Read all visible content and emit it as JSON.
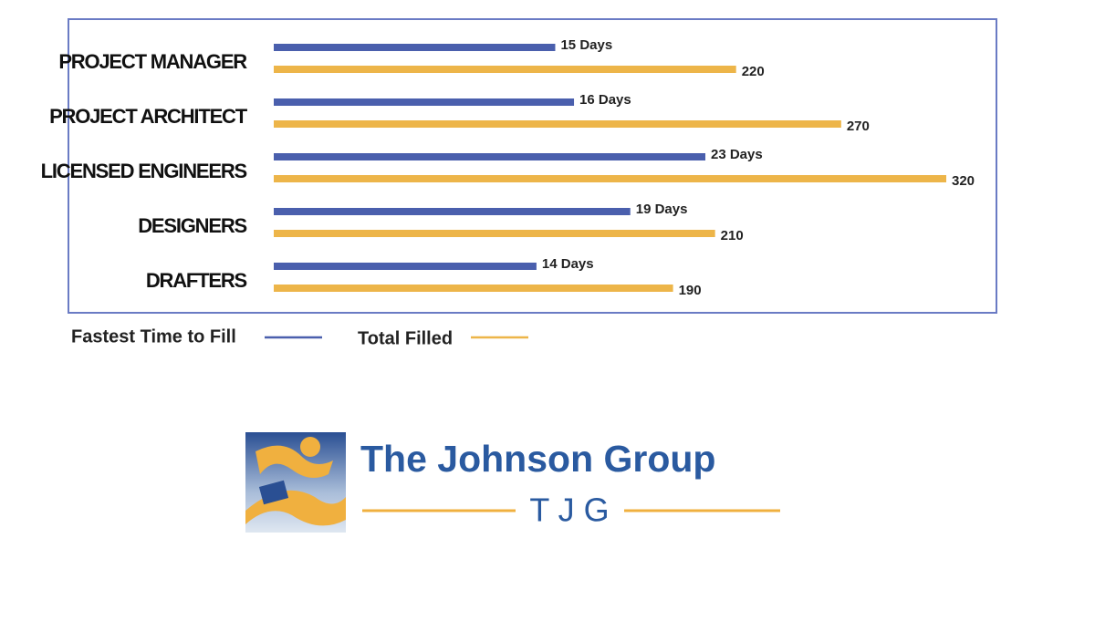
{
  "chart_data": {
    "type": "bar",
    "orientation": "horizontal",
    "categories": [
      "PROJECT MANAGER",
      "PROJECT ARCHITECT",
      "LICENSED ENGINEERS",
      "DESIGNERS",
      "DRAFTERS"
    ],
    "series": [
      {
        "name": "Fastest Time to Fill",
        "color": "#4a5fad",
        "values": [
          15,
          16,
          23,
          19,
          14
        ],
        "value_labels": [
          "15 Days",
          "16 Days",
          "23 Days",
          "19 Days",
          "14 Days"
        ]
      },
      {
        "name": "Total Filled",
        "color": "#edb549",
        "values": [
          220,
          270,
          320,
          210,
          190
        ]
      }
    ]
  },
  "logo": {
    "name": "The Johnson Group",
    "initials": "T J G"
  }
}
